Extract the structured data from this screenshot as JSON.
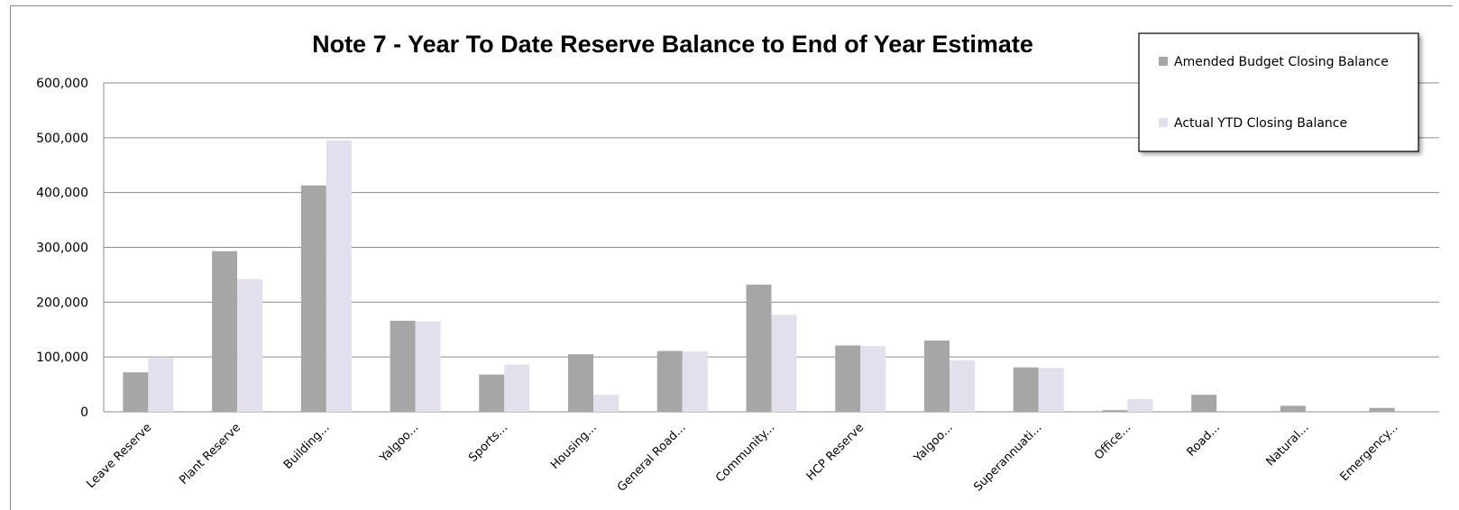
{
  "chart_data": {
    "type": "bar",
    "title": "Note 7 - Year To Date Reserve Balance to End of Year Estimate",
    "xlabel": "",
    "ylabel": "",
    "ylim": [
      0,
      600000
    ],
    "yticks": [
      0,
      100000,
      200000,
      300000,
      400000,
      500000,
      600000
    ],
    "ytick_labels": [
      "0",
      "100,000",
      "200,000",
      "300,000",
      "400,000",
      "500,000",
      "600,000"
    ],
    "grid": true,
    "legend_position": "top-right",
    "categories": [
      "Leave Reserve",
      "Plant Reserve",
      "Building...",
      "Yalgoo...",
      "Sports...",
      "Housing...",
      "General Road...",
      "Community...",
      "HCP Reserve",
      "Yalgoo...",
      "Superannuati...",
      "Office...",
      "Road...",
      "Natural...",
      "Emergency..."
    ],
    "series": [
      {
        "name": "Amended Budget Closing Balance",
        "color": "#a6a6a6",
        "values": [
          72000,
          293000,
          413000,
          166000,
          68000,
          105000,
          111000,
          232000,
          121000,
          130000,
          81000,
          3000,
          31000,
          11000,
          7000
        ]
      },
      {
        "name": "Actual YTD Closing Balance",
        "color": "#e4dfec",
        "values": [
          98000,
          242000,
          495000,
          165000,
          86000,
          31000,
          110000,
          177000,
          120000,
          94000,
          80000,
          23000,
          0,
          0,
          0
        ]
      }
    ]
  }
}
